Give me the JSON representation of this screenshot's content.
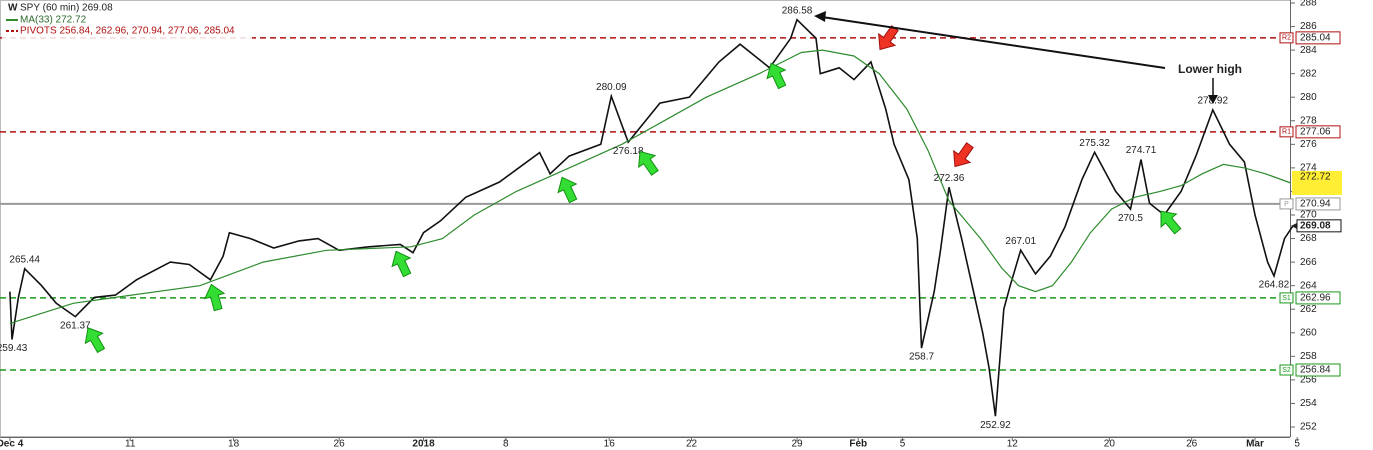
{
  "chart_data": {
    "type": "line",
    "series": [
      {
        "name": "SPY (60 min) 269.08",
        "color": "#111111",
        "x": [
          0,
          0.1,
          0.4,
          0.7,
          1.5,
          2.2,
          3.1,
          4,
          5,
          6,
          7.6,
          8.5,
          9.5,
          10.1,
          10.4,
          11.4,
          12.5,
          13.7,
          14.6,
          15.6,
          17,
          18.5,
          19.1,
          19.6,
          20.4,
          21.6,
          23.2,
          25.1,
          25.6,
          26.5,
          28,
          28.5,
          29.3,
          30.8,
          32.2,
          33.6,
          34.6,
          36,
          37,
          37.3,
          38.2,
          38.4,
          39.3,
          40,
          40.8,
          41.5,
          41.9,
          42.6,
          43,
          43.2,
          43.8,
          44.1,
          44.5,
          45.1,
          45.6,
          46.1,
          46.4,
          46.7,
          47.1,
          47.4,
          47.9,
          48.6,
          49.3,
          50,
          50.8,
          51.4,
          52.4,
          53.1,
          53.6,
          54,
          54.7,
          55.5,
          56.2,
          57,
          57.8,
          58.5,
          59,
          59.6,
          59.9,
          60.4,
          60.8
        ],
        "values": [
          263.5,
          259.43,
          263,
          265.44,
          264,
          262.5,
          261.37,
          263,
          263.2,
          264.5,
          266,
          265.8,
          264.5,
          266.5,
          268.5,
          268,
          267.2,
          267.8,
          268,
          267,
          267.3,
          267.5,
          266.8,
          268.5,
          269.5,
          271.5,
          272.8,
          275.3,
          273.5,
          275,
          276,
          280.09,
          276.18,
          279.5,
          280,
          283,
          284.5,
          282.5,
          285,
          286.58,
          285,
          282,
          282.5,
          281.5,
          283,
          279,
          276,
          273,
          268,
          258.7,
          263.5,
          267,
          272.36,
          268,
          264,
          260,
          257,
          252.92,
          262,
          264,
          267.01,
          265,
          266.5,
          269,
          273,
          275.32,
          272,
          270.5,
          274.71,
          271,
          270,
          272,
          275,
          278.92,
          276,
          274.5,
          270,
          266,
          264.82,
          268,
          269.08
        ]
      },
      {
        "name": "MA(33) 272.72",
        "color": "#2e8b2e",
        "x": [
          0,
          3,
          5,
          9,
          12,
          15,
          19,
          20.5,
          22,
          24,
          26.5,
          29,
          31,
          33,
          35.5,
          37.5,
          38.5,
          40,
          41.2,
          42.5,
          43.5,
          44.5,
          46,
          47,
          47.8,
          48.6,
          49.4,
          50.3,
          51.2,
          52.2,
          53.3,
          54.5,
          55.5,
          56.5,
          57.5,
          58.5,
          59.5,
          60.7
        ],
        "values": [
          260.8,
          262.5,
          263,
          264,
          266,
          267,
          267.3,
          268,
          270,
          272,
          274,
          276,
          278,
          280,
          282,
          283.8,
          284,
          283.5,
          282,
          279,
          275.5,
          271.2,
          268,
          265.5,
          264,
          263.5,
          264,
          266,
          268.5,
          270.5,
          271.5,
          272,
          272.5,
          273.5,
          274.3,
          274,
          273.5,
          272.72
        ]
      }
    ],
    "pivots": {
      "name": "PIVOTS 256.84, 262.96, 270.94, 277.06, 285.04",
      "lines": [
        {
          "name": "R2",
          "value": 285.04,
          "color": "#b01010",
          "style": "dashed"
        },
        {
          "name": "R1",
          "value": 277.06,
          "color": "#b01010",
          "style": "dashed"
        },
        {
          "name": "P",
          "value": 270.94,
          "color": "#999999",
          "style": "solid"
        },
        {
          "name": "S1",
          "value": 262.96,
          "color": "#1a9a1a",
          "style": "dashed"
        },
        {
          "name": "S2",
          "value": 256.84,
          "color": "#1a9a1a",
          "style": "dashed"
        }
      ]
    },
    "annotations": [
      {
        "x": 0.1,
        "value": 259.43
      },
      {
        "x": 0.7,
        "value": 265.44
      },
      {
        "x": 3.1,
        "value": 261.37
      },
      {
        "x": 28.5,
        "value": 280.09
      },
      {
        "x": 29.3,
        "value": 276.18
      },
      {
        "x": 37.3,
        "value": 286.58
      },
      {
        "x": 43.2,
        "value": 258.7
      },
      {
        "x": 44.5,
        "value": 272.36
      },
      {
        "x": 46.7,
        "value": 252.92
      },
      {
        "x": 47.9,
        "value": 267.01
      },
      {
        "x": 51.4,
        "value": 275.32
      },
      {
        "x": 53.1,
        "value": 270.5
      },
      {
        "x": 53.6,
        "value": 274.71
      },
      {
        "x": 57,
        "value": 278.92
      },
      {
        "x": 59.9,
        "value": 264.82
      }
    ],
    "callout": "Lower high",
    "xlim": [
      -0.47,
      60.66
    ],
    "xticks": [
      {
        "value": 0,
        "label": "Dec 4"
      },
      {
        "value": 5.7,
        "label": "11"
      },
      {
        "value": 10.6,
        "label": "18"
      },
      {
        "value": 15.6,
        "label": "26"
      },
      {
        "value": 19.6,
        "label": "2018"
      },
      {
        "value": 23.5,
        "label": "8"
      },
      {
        "value": 28.4,
        "label": "16"
      },
      {
        "value": 32.3,
        "label": "22"
      },
      {
        "value": 37.3,
        "label": "29"
      },
      {
        "value": 40.2,
        "label": "Feb"
      },
      {
        "value": 42.3,
        "label": "5"
      },
      {
        "value": 47.5,
        "label": "12"
      },
      {
        "value": 52.1,
        "label": "20"
      },
      {
        "value": 56,
        "label": "26"
      },
      {
        "value": 59,
        "label": "Mar"
      },
      {
        "value": 61,
        "label": "5"
      }
    ],
    "ylim": [
      252,
      288
    ],
    "yticks": [
      252,
      254,
      256,
      258,
      260,
      262,
      264,
      266,
      268,
      270,
      272,
      274,
      276,
      278,
      280,
      282,
      284,
      286,
      288
    ]
  }
}
